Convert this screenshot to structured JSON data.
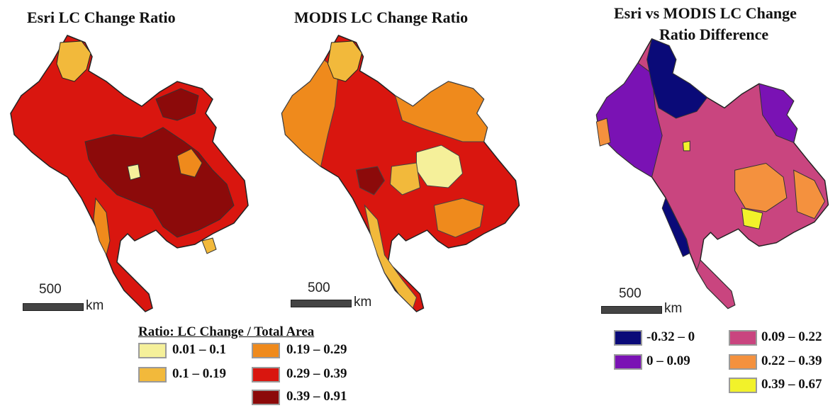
{
  "titles": {
    "esri": "Esri LC Change Ratio",
    "modis": "MODIS LC Change Ratio",
    "diff_line1": "Esri vs MODIS LC Change",
    "diff_line2": "Ratio Difference"
  },
  "scale": {
    "value": "500",
    "unit": "km"
  },
  "ratio_legend": {
    "title": "Ratio: LC Change / Total Area",
    "items": [
      {
        "label": "0.01 – 0.1",
        "color": "#f5f09a"
      },
      {
        "label": "0.1 – 0.19",
        "color": "#f2b93b"
      },
      {
        "label": "0.19 – 0.29",
        "color": "#ef8a1c"
      },
      {
        "label": "0.29 – 0.39",
        "color": "#d9160f"
      },
      {
        "label": "0.39 – 0.91",
        "color": "#8c0a0a"
      }
    ]
  },
  "diff_legend": {
    "items": [
      {
        "label": "-0.32 – 0",
        "color": "#0a0a78"
      },
      {
        "label": "0 – 0.09",
        "color": "#7a12b4"
      },
      {
        "label": "0.09 – 0.22",
        "color": "#c9457f"
      },
      {
        "label": "0.22 – 0.39",
        "color": "#f4913e"
      },
      {
        "label": "0.39 – 0.67",
        "color": "#f2f22a"
      }
    ]
  }
}
